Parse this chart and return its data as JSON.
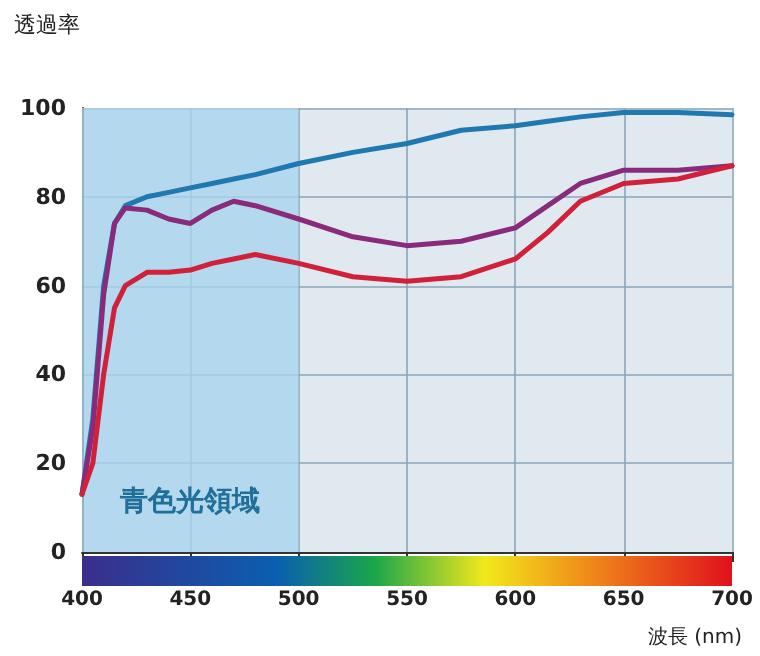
{
  "chart_data": {
    "type": "line",
    "xlabel": "波長 (nm)",
    "ylabel": "透過率",
    "xlim": [
      400,
      700
    ],
    "xticks": [
      400,
      450,
      500,
      550,
      600,
      650,
      700
    ],
    "ylim": [
      0,
      100
    ],
    "yticks": [
      0,
      20,
      40,
      60,
      80,
      100
    ],
    "grid": true,
    "marker": "none",
    "line_style": "solid",
    "bands": [
      {
        "axis": "x",
        "from": 400,
        "to": 500,
        "label": "青色光領域",
        "color": "#a9d3ec"
      }
    ],
    "x": [
      400,
      405,
      410,
      415,
      420,
      430,
      440,
      450,
      460,
      470,
      480,
      500,
      525,
      550,
      575,
      600,
      615,
      630,
      650,
      675,
      700
    ],
    "series": [
      {
        "color": "#1f78b0",
        "values": [
          13,
          30,
          60,
          74,
          78,
          80,
          81,
          82,
          83,
          84,
          85,
          87.5,
          90,
          92,
          95,
          96,
          97,
          98,
          99,
          99,
          98.5
        ]
      },
      {
        "color": "#8a2a7a",
        "values": [
          13,
          28,
          58,
          74,
          77.5,
          77,
          75,
          74,
          77,
          79,
          78,
          75,
          71,
          69,
          70,
          73,
          78,
          83,
          86,
          86,
          87
        ]
      },
      {
        "color": "#d0203a",
        "values": [
          13,
          20,
          40,
          55,
          60,
          63,
          63,
          63.5,
          65,
          66,
          67,
          65,
          62,
          61,
          62,
          66,
          72,
          79,
          83,
          84,
          87
        ]
      }
    ]
  }
}
